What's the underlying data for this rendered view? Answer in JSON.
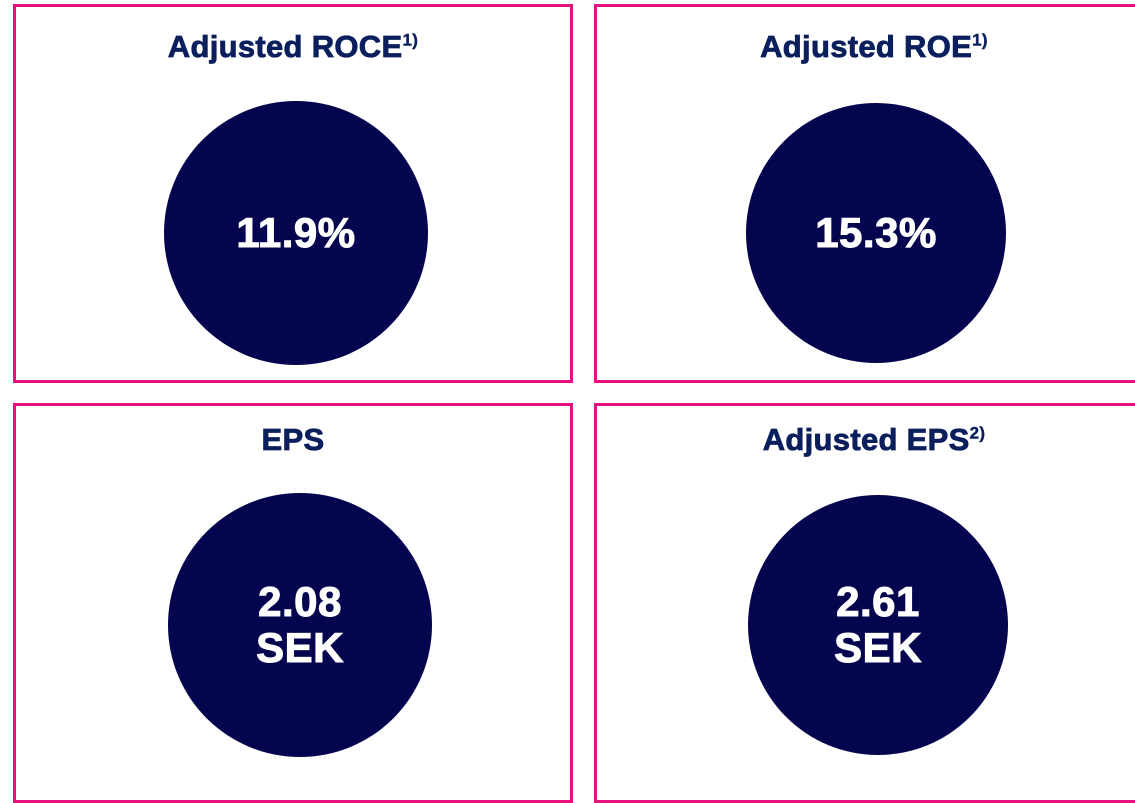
{
  "cards": [
    {
      "title": "Adjusted ROCE",
      "note": "1)",
      "value_lines": [
        "11.9%"
      ]
    },
    {
      "title": "Adjusted ROE",
      "note": "1)",
      "value_lines": [
        "15.3%"
      ]
    },
    {
      "title": "EPS",
      "value_lines": [
        "2.08",
        "SEK"
      ]
    },
    {
      "title": "Adjusted EPS",
      "note": "2)",
      "value_lines": [
        "2.61",
        "SEK"
      ]
    }
  ]
}
